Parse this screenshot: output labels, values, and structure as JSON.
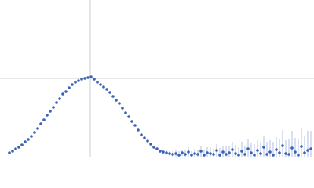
{
  "chart_data": {
    "type": "scatter",
    "xlim": [
      0,
      400
    ],
    "ylim": [
      0,
      200
    ],
    "reference_lines": {
      "x": 115,
      "y": 100,
      "color": "#c8ccd4"
    },
    "series": [
      {
        "color": "#3a62b5",
        "error_color": "#9db0dd",
        "x": [
          12,
          16,
          20,
          24,
          28,
          32,
          36,
          40,
          44,
          48,
          52,
          56,
          60,
          64,
          68,
          72,
          76,
          80,
          84,
          88,
          92,
          96,
          100,
          104,
          108,
          112,
          116,
          120,
          124,
          128,
          132,
          136,
          140,
          144,
          148,
          152,
          156,
          160,
          164,
          168,
          172,
          176,
          180,
          184,
          188,
          192,
          196,
          200,
          204,
          208,
          212,
          216,
          220,
          224,
          228,
          232,
          236,
          240,
          244,
          248,
          252,
          256,
          260,
          264,
          268,
          272,
          276,
          280,
          284,
          288,
          292,
          296,
          300,
          304,
          308,
          312,
          316,
          320,
          324,
          328,
          332,
          336,
          340,
          344,
          348,
          352,
          356,
          360,
          364,
          368,
          372,
          376,
          380,
          384,
          388,
          392,
          396
        ],
        "values": [
          5,
          7,
          10,
          12,
          15,
          19,
          22,
          26,
          31,
          36,
          42,
          47,
          53,
          58,
          63,
          69,
          74,
          80,
          83,
          88,
          92,
          95,
          97,
          99,
          100,
          101,
          102,
          99,
          95,
          92,
          89,
          86,
          82,
          77,
          72,
          68,
          62,
          56,
          51,
          45,
          40,
          34,
          28,
          24,
          20,
          16,
          12,
          10,
          7,
          6,
          5,
          4,
          3,
          4,
          2,
          5,
          3,
          6,
          2,
          4,
          3,
          7,
          2,
          5,
          4,
          3,
          8,
          2,
          6,
          3,
          5,
          9,
          4,
          2,
          7,
          3,
          10,
          5,
          2,
          8,
          4,
          12,
          3,
          6,
          2,
          9,
          5,
          14,
          4,
          3,
          11,
          6,
          2,
          13,
          5,
          8,
          10
        ],
        "errors": [
          1,
          1,
          1,
          1,
          1,
          1,
          1,
          1,
          1,
          1,
          1,
          1,
          1,
          1,
          1,
          1,
          1,
          1,
          1,
          1,
          1,
          1,
          1,
          1,
          1,
          1,
          1,
          1,
          1,
          1,
          1,
          1,
          1,
          1,
          1,
          1,
          1,
          1,
          1,
          1,
          1,
          1,
          1,
          1,
          1,
          1,
          1,
          2,
          2,
          3,
          3,
          3,
          4,
          4,
          5,
          4,
          5,
          6,
          5,
          6,
          6,
          7,
          6,
          7,
          8,
          7,
          8,
          9,
          8,
          10,
          9,
          10,
          11,
          10,
          12,
          11,
          13,
          12,
          14,
          13,
          15,
          14,
          16,
          15,
          17,
          16,
          18,
          20,
          17,
          19,
          22,
          18,
          20,
          24,
          21,
          25,
          23
        ]
      }
    ]
  }
}
